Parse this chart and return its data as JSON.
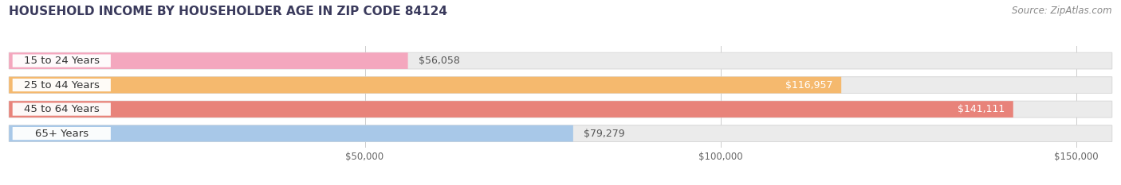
{
  "title": "HOUSEHOLD INCOME BY HOUSEHOLDER AGE IN ZIP CODE 84124",
  "source": "Source: ZipAtlas.com",
  "categories": [
    "15 to 24 Years",
    "25 to 44 Years",
    "45 to 64 Years",
    "65+ Years"
  ],
  "values": [
    56058,
    116957,
    141111,
    79279
  ],
  "bar_colors": [
    "#f4a7be",
    "#f5b96e",
    "#e8837a",
    "#a8c8e8"
  ],
  "label_colors": [
    "#555555",
    "#ffffff",
    "#ffffff",
    "#555555"
  ],
  "xlim": [
    0,
    155000
  ],
  "xticks": [
    50000,
    100000,
    150000
  ],
  "xtick_labels": [
    "$50,000",
    "$100,000",
    "$150,000"
  ],
  "background_color": "#ffffff",
  "title_fontsize": 11,
  "source_fontsize": 8.5,
  "label_fontsize": 9.5,
  "value_fontsize": 9,
  "bar_height": 0.68,
  "track_color": "#ebebeb",
  "track_edge_color": "#d8d8d8"
}
